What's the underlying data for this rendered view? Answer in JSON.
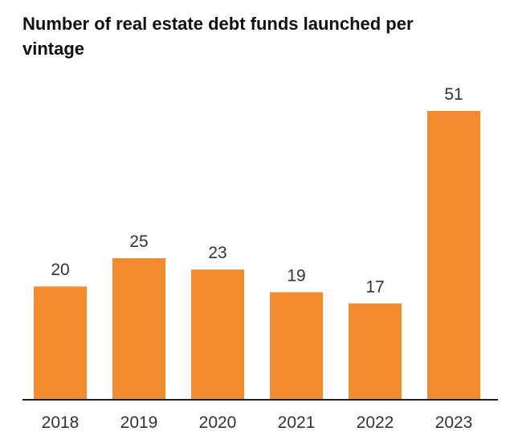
{
  "chart_data": {
    "type": "bar",
    "title": "Number of real estate debt funds launched per vintage",
    "categories": [
      "2018",
      "2019",
      "2020",
      "2021",
      "2022",
      "2023"
    ],
    "values": [
      20,
      25,
      23,
      19,
      17,
      51
    ],
    "xlabel": "",
    "ylabel": "",
    "ylim": [
      0,
      51
    ],
    "grid": false,
    "legend": "none",
    "bar_color": "#F28C2E",
    "axis_color": "#222222"
  }
}
